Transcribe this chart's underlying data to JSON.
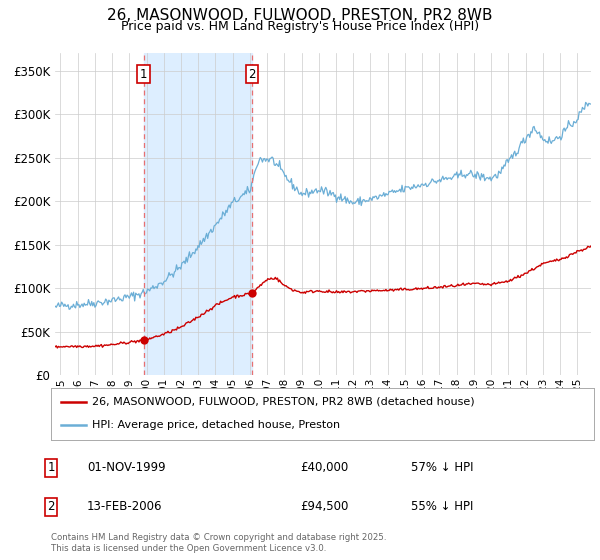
{
  "title": "26, MASONWOOD, FULWOOD, PRESTON, PR2 8WB",
  "subtitle": "Price paid vs. HM Land Registry's House Price Index (HPI)",
  "title_fontsize": 11,
  "subtitle_fontsize": 9,
  "ylabel_ticks": [
    "£0",
    "£50K",
    "£100K",
    "£150K",
    "£200K",
    "£250K",
    "£300K",
    "£350K"
  ],
  "ytick_values": [
    0,
    50000,
    100000,
    150000,
    200000,
    250000,
    300000,
    350000
  ],
  "ylim": [
    0,
    370000
  ],
  "xlim_start": 1994.7,
  "xlim_end": 2025.8,
  "purchase1_date": 1999.83,
  "purchase1_price": 40000,
  "purchase1_label": "01-NOV-1999",
  "purchase1_amount": "£40,000",
  "purchase1_hpi": "57% ↓ HPI",
  "purchase2_date": 2006.12,
  "purchase2_price": 94500,
  "purchase2_label": "13-FEB-2006",
  "purchase2_amount": "£94,500",
  "purchase2_hpi": "55% ↓ HPI",
  "hpi_line_color": "#6baed6",
  "property_line_color": "#cc0000",
  "shade_color": "#ddeeff",
  "grid_color": "#cccccc",
  "marker_color": "#cc0000",
  "vline_color": "#e87070",
  "background_color": "#ffffff",
  "legend_label_property": "26, MASONWOOD, FULWOOD, PRESTON, PR2 8WB (detached house)",
  "legend_label_hpi": "HPI: Average price, detached house, Preston",
  "footer_text": "Contains HM Land Registry data © Crown copyright and database right 2025.\nThis data is licensed under the Open Government Licence v3.0.",
  "xtick_years": [
    "1995",
    "1996",
    "1997",
    "1998",
    "1999",
    "2000",
    "2001",
    "2002",
    "2003",
    "2004",
    "2005",
    "2006",
    "2007",
    "2008",
    "2009",
    "2010",
    "2011",
    "2012",
    "2013",
    "2014",
    "2015",
    "2016",
    "2017",
    "2018",
    "2019",
    "2020",
    "2021",
    "2022",
    "2023",
    "2024",
    "2025"
  ]
}
